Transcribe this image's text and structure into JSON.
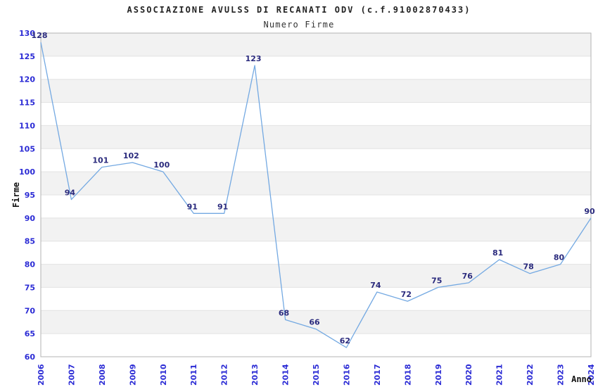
{
  "chart_data": {
    "type": "line",
    "title": "ASSOCIAZIONE AVULSS DI RECANATI ODV (c.f.91002870433)",
    "subtitle": "Numero Firme",
    "xlabel": "Anno",
    "ylabel": "Firme",
    "categories": [
      "2006",
      "2007",
      "2008",
      "2009",
      "2010",
      "2011",
      "2012",
      "2013",
      "2014",
      "2015",
      "2016",
      "2017",
      "2018",
      "2019",
      "2020",
      "2021",
      "2022",
      "2023",
      "2024"
    ],
    "values": [
      128,
      94,
      101,
      102,
      100,
      91,
      91,
      123,
      68,
      66,
      62,
      74,
      72,
      75,
      76,
      81,
      78,
      80,
      90
    ],
    "ylim": [
      60,
      130
    ],
    "ytick_step": 5,
    "legend": "none",
    "grid": "alternating-horizontal-bands",
    "markers": "none",
    "colors": {
      "line": "#74a9e2",
      "tick_label": "#2b2bd5",
      "data_label": "#2a2a7d",
      "band": "#f2f2f2",
      "gridline": "#e2e2e2",
      "plot_border": "#b3b3b3",
      "title": "#222222",
      "axis_title": "#111111",
      "background": "#ffffff"
    }
  }
}
